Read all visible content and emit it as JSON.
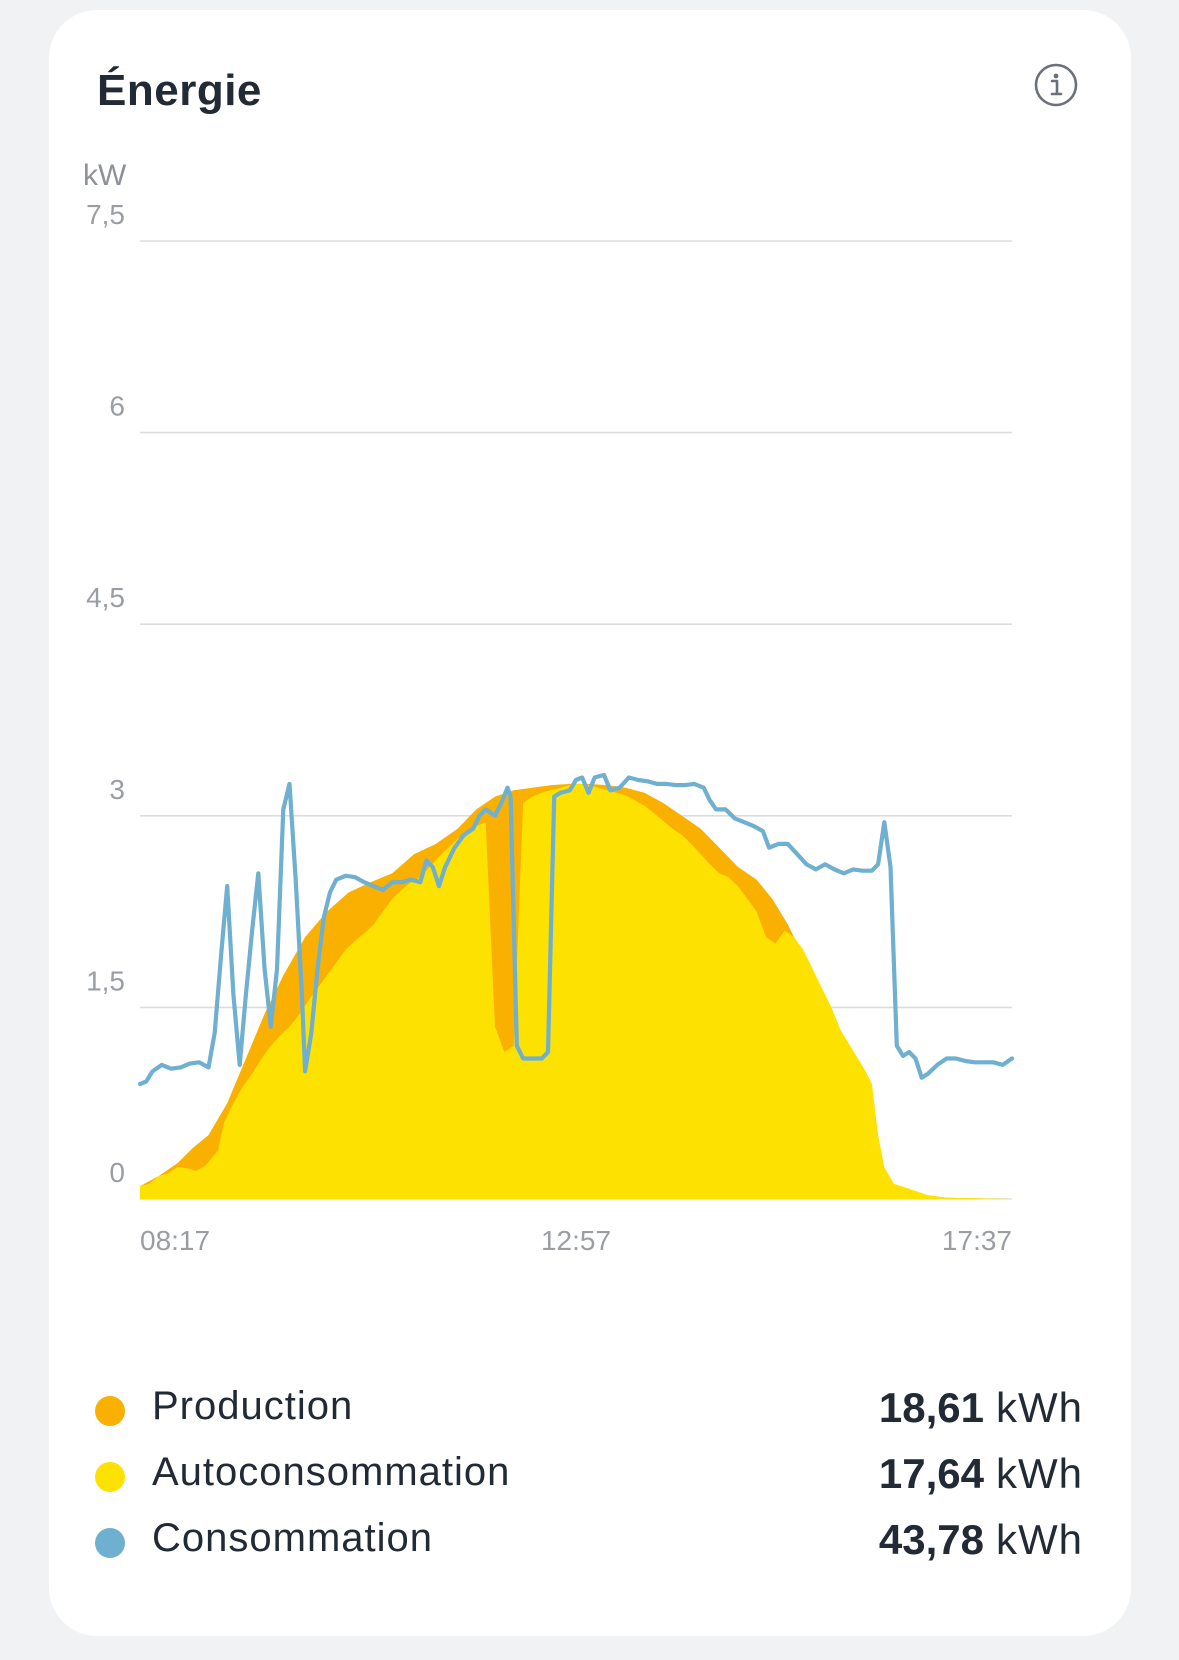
{
  "card": {
    "title": "Énergie",
    "info_icon": "info-icon"
  },
  "chart_data": {
    "type": "area",
    "ylabel": "kW",
    "ylim": [
      0,
      7.5
    ],
    "y_ticks": [
      "7,5",
      "6",
      "4,5",
      "3",
      "1,5",
      "0"
    ],
    "y_tick_values": [
      7.5,
      6,
      4.5,
      3,
      1.5,
      0
    ],
    "x_tick_labels": [
      "08:17",
      "12:57",
      "17:37"
    ],
    "xlim_minutes": [
      497,
      1057
    ],
    "grid": true,
    "series": [
      {
        "name": "Production",
        "color": "#f9b000",
        "points": [
          [
            497,
            0.1
          ],
          [
            509,
            0.18
          ],
          [
            521,
            0.28
          ],
          [
            531,
            0.4
          ],
          [
            541,
            0.5
          ],
          [
            553,
            0.75
          ],
          [
            565,
            1.1
          ],
          [
            577,
            1.45
          ],
          [
            589,
            1.75
          ],
          [
            603,
            2.05
          ],
          [
            617,
            2.25
          ],
          [
            631,
            2.4
          ],
          [
            645,
            2.48
          ],
          [
            659,
            2.55
          ],
          [
            673,
            2.7
          ],
          [
            687,
            2.78
          ],
          [
            701,
            2.9
          ],
          [
            713,
            3.05
          ],
          [
            725,
            3.15
          ],
          [
            737,
            3.2
          ],
          [
            749,
            3.22
          ],
          [
            761,
            3.24
          ],
          [
            773,
            3.25
          ],
          [
            785,
            3.25
          ],
          [
            797,
            3.24
          ],
          [
            809,
            3.22
          ],
          [
            821,
            3.18
          ],
          [
            833,
            3.1
          ],
          [
            845,
            3.0
          ],
          [
            857,
            2.9
          ],
          [
            869,
            2.75
          ],
          [
            881,
            2.6
          ],
          [
            893,
            2.5
          ],
          [
            903,
            2.35
          ],
          [
            913,
            2.15
          ],
          [
            925,
            1.85
          ],
          [
            937,
            1.55
          ],
          [
            949,
            1.2
          ],
          [
            961,
            0.9
          ],
          [
            967,
            0.7
          ],
          [
            973,
            0.25
          ],
          [
            979,
            0.1
          ],
          [
            991,
            0.06
          ],
          [
            1003,
            0.03
          ],
          [
            1015,
            0.01
          ],
          [
            1057,
            0.0
          ]
        ]
      },
      {
        "name": "Autoconsommation",
        "color": "#fde100",
        "points": [
          [
            497,
            0.1
          ],
          [
            503,
            0.12
          ],
          [
            509,
            0.18
          ],
          [
            515,
            0.2
          ],
          [
            521,
            0.25
          ],
          [
            527,
            0.24
          ],
          [
            533,
            0.22
          ],
          [
            539,
            0.26
          ],
          [
            543,
            0.32
          ],
          [
            547,
            0.38
          ],
          [
            551,
            0.6
          ],
          [
            557,
            0.75
          ],
          [
            563,
            0.88
          ],
          [
            569,
            0.98
          ],
          [
            575,
            1.1
          ],
          [
            581,
            1.2
          ],
          [
            587,
            1.28
          ],
          [
            593,
            1.35
          ],
          [
            599,
            1.44
          ],
          [
            605,
            1.55
          ],
          [
            611,
            1.65
          ],
          [
            617,
            1.75
          ],
          [
            623,
            1.85
          ],
          [
            629,
            1.95
          ],
          [
            635,
            2.02
          ],
          [
            641,
            2.08
          ],
          [
            647,
            2.15
          ],
          [
            653,
            2.25
          ],
          [
            659,
            2.35
          ],
          [
            665,
            2.42
          ],
          [
            671,
            2.48
          ],
          [
            677,
            2.52
          ],
          [
            683,
            2.6
          ],
          [
            689,
            2.68
          ],
          [
            695,
            2.75
          ],
          [
            701,
            2.82
          ],
          [
            707,
            2.88
          ],
          [
            713,
            2.92
          ],
          [
            719,
            2.95
          ],
          [
            725,
            1.35
          ],
          [
            731,
            1.15
          ],
          [
            737,
            1.2
          ],
          [
            743,
            3.1
          ],
          [
            749,
            3.15
          ],
          [
            755,
            3.18
          ],
          [
            761,
            3.2
          ],
          [
            767,
            3.22
          ],
          [
            773,
            3.24
          ],
          [
            779,
            3.25
          ],
          [
            785,
            3.24
          ],
          [
            791,
            3.22
          ],
          [
            797,
            3.2
          ],
          [
            803,
            3.18
          ],
          [
            809,
            3.16
          ],
          [
            815,
            3.12
          ],
          [
            821,
            3.08
          ],
          [
            827,
            3.02
          ],
          [
            833,
            2.96
          ],
          [
            839,
            2.9
          ],
          [
            845,
            2.85
          ],
          [
            851,
            2.78
          ],
          [
            857,
            2.7
          ],
          [
            863,
            2.62
          ],
          [
            869,
            2.55
          ],
          [
            875,
            2.52
          ],
          [
            881,
            2.45
          ],
          [
            887,
            2.35
          ],
          [
            893,
            2.25
          ],
          [
            899,
            2.05
          ],
          [
            905,
            2.0
          ],
          [
            911,
            2.1
          ],
          [
            917,
            2.05
          ],
          [
            923,
            1.95
          ],
          [
            929,
            1.8
          ],
          [
            935,
            1.65
          ],
          [
            941,
            1.5
          ],
          [
            947,
            1.32
          ],
          [
            953,
            1.2
          ],
          [
            959,
            1.08
          ],
          [
            963,
            1.0
          ],
          [
            967,
            0.9
          ],
          [
            971,
            0.5
          ],
          [
            975,
            0.25
          ],
          [
            981,
            0.12
          ],
          [
            991,
            0.08
          ],
          [
            1003,
            0.03
          ],
          [
            1015,
            0.01
          ],
          [
            1057,
            0.0
          ]
        ]
      },
      {
        "name": "Consommation",
        "color": "#6fafd0",
        "points": [
          [
            497,
            0.9
          ],
          [
            501,
            0.92
          ],
          [
            505,
            1.0
          ],
          [
            511,
            1.05
          ],
          [
            517,
            1.02
          ],
          [
            523,
            1.03
          ],
          [
            529,
            1.06
          ],
          [
            535,
            1.07
          ],
          [
            541,
            1.03
          ],
          [
            545,
            1.3
          ],
          [
            549,
            1.9
          ],
          [
            553,
            2.45
          ],
          [
            557,
            1.6
          ],
          [
            561,
            1.05
          ],
          [
            565,
            1.6
          ],
          [
            569,
            2.1
          ],
          [
            573,
            2.55
          ],
          [
            577,
            1.8
          ],
          [
            581,
            1.35
          ],
          [
            585,
            1.8
          ],
          [
            589,
            3.05
          ],
          [
            593,
            3.25
          ],
          [
            597,
            2.5
          ],
          [
            601,
            1.6
          ],
          [
            603,
            1.0
          ],
          [
            607,
            1.3
          ],
          [
            611,
            1.8
          ],
          [
            615,
            2.2
          ],
          [
            619,
            2.4
          ],
          [
            623,
            2.5
          ],
          [
            629,
            2.53
          ],
          [
            635,
            2.52
          ],
          [
            641,
            2.48
          ],
          [
            647,
            2.45
          ],
          [
            653,
            2.42
          ],
          [
            659,
            2.48
          ],
          [
            665,
            2.48
          ],
          [
            671,
            2.5
          ],
          [
            677,
            2.48
          ],
          [
            681,
            2.65
          ],
          [
            685,
            2.6
          ],
          [
            689,
            2.45
          ],
          [
            693,
            2.6
          ],
          [
            699,
            2.75
          ],
          [
            705,
            2.85
          ],
          [
            711,
            2.9
          ],
          [
            715,
            3.0
          ],
          [
            719,
            3.05
          ],
          [
            725,
            3.0
          ],
          [
            729,
            3.1
          ],
          [
            733,
            3.22
          ],
          [
            735,
            3.15
          ],
          [
            739,
            1.2
          ],
          [
            743,
            1.1
          ],
          [
            749,
            1.1
          ],
          [
            755,
            1.1
          ],
          [
            759,
            1.15
          ],
          [
            763,
            3.15
          ],
          [
            767,
            3.18
          ],
          [
            773,
            3.2
          ],
          [
            777,
            3.28
          ],
          [
            781,
            3.3
          ],
          [
            785,
            3.18
          ],
          [
            789,
            3.3
          ],
          [
            795,
            3.32
          ],
          [
            799,
            3.2
          ],
          [
            805,
            3.22
          ],
          [
            811,
            3.3
          ],
          [
            817,
            3.28
          ],
          [
            823,
            3.27
          ],
          [
            829,
            3.25
          ],
          [
            835,
            3.25
          ],
          [
            841,
            3.24
          ],
          [
            847,
            3.24
          ],
          [
            853,
            3.25
          ],
          [
            859,
            3.22
          ],
          [
            863,
            3.12
          ],
          [
            867,
            3.05
          ],
          [
            873,
            3.05
          ],
          [
            879,
            2.98
          ],
          [
            885,
            2.95
          ],
          [
            891,
            2.92
          ],
          [
            897,
            2.88
          ],
          [
            901,
            2.75
          ],
          [
            907,
            2.78
          ],
          [
            913,
            2.78
          ],
          [
            919,
            2.7
          ],
          [
            925,
            2.62
          ],
          [
            931,
            2.58
          ],
          [
            937,
            2.62
          ],
          [
            943,
            2.58
          ],
          [
            949,
            2.55
          ],
          [
            955,
            2.58
          ],
          [
            961,
            2.57
          ],
          [
            967,
            2.57
          ],
          [
            971,
            2.62
          ],
          [
            975,
            2.95
          ],
          [
            979,
            2.6
          ],
          [
            983,
            1.2
          ],
          [
            987,
            1.12
          ],
          [
            991,
            1.15
          ],
          [
            995,
            1.1
          ],
          [
            999,
            0.95
          ],
          [
            1003,
            0.98
          ],
          [
            1009,
            1.05
          ],
          [
            1015,
            1.1
          ],
          [
            1021,
            1.1
          ],
          [
            1027,
            1.08
          ],
          [
            1033,
            1.07
          ],
          [
            1039,
            1.07
          ],
          [
            1045,
            1.07
          ],
          [
            1051,
            1.05
          ],
          [
            1057,
            1.1
          ]
        ]
      }
    ]
  },
  "legend": [
    {
      "label": "Production",
      "value": "18,61",
      "unit": "kWh",
      "color": "#f9b000"
    },
    {
      "label": "Autoconsommation",
      "value": "17,64",
      "unit": "kWh",
      "color": "#fde100"
    },
    {
      "label": "Consommation",
      "value": "43,78",
      "unit": "kWh",
      "color": "#6fafd0"
    }
  ]
}
